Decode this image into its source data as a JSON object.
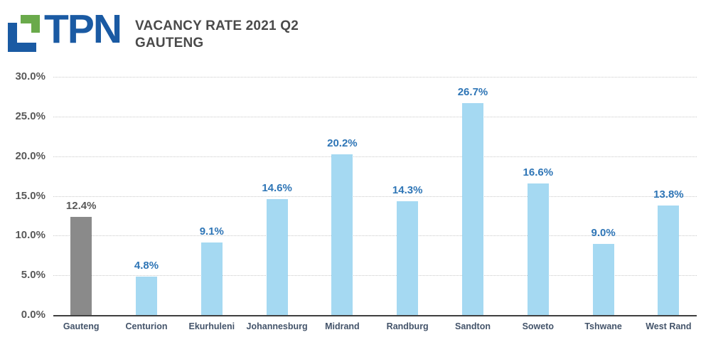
{
  "header": {
    "logo_text": "TPN",
    "title_line1": "VACANCY RATE 2021 Q2",
    "title_line2": "GAUTENG"
  },
  "colors": {
    "brand_blue": "#1a5aa3",
    "brand_green": "#6aaa4b",
    "title_text": "#4a4a4a",
    "bar_blue": "#a5d9f2",
    "bar_gray": "#8a8a8a",
    "value_label_blue": "#2e75b6",
    "value_label_gray": "#595959",
    "axis_tick_label": "#595959",
    "category_label": "#44546a",
    "axis_line": "#3f3f3f",
    "gridline": "#c9c9c9"
  },
  "chart_data": {
    "type": "bar",
    "title": "VACANCY RATE 2021 Q2 GAUTENG",
    "categories": [
      "Gauteng",
      "Centurion",
      "Ekurhuleni",
      "Johannesburg",
      "Midrand",
      "Randburg",
      "Sandton",
      "Soweto",
      "Tshwane",
      "West Rand"
    ],
    "values": [
      12.4,
      4.8,
      9.1,
      14.6,
      20.2,
      14.3,
      26.7,
      16.6,
      9.0,
      13.8
    ],
    "value_labels": [
      "12.4%",
      "4.8%",
      "9.1%",
      "14.6%",
      "20.2%",
      "14.3%",
      "26.7%",
      "16.6%",
      "9.0%",
      "13.8%"
    ],
    "highlight_category": "Gauteng",
    "highlight_note": "Gauteng bar is gray; all other bars light blue",
    "xlabel": "",
    "ylabel": "",
    "ylim": [
      0,
      30
    ],
    "ytick_interval": 5,
    "yticks": [
      "30.0%",
      "25.0%",
      "20.0%",
      "15.0%",
      "10.0%",
      "5.0%",
      "0.0%"
    ],
    "grid": "horizontal-dotted",
    "legend": "none",
    "value_label_position": "above-bar"
  }
}
